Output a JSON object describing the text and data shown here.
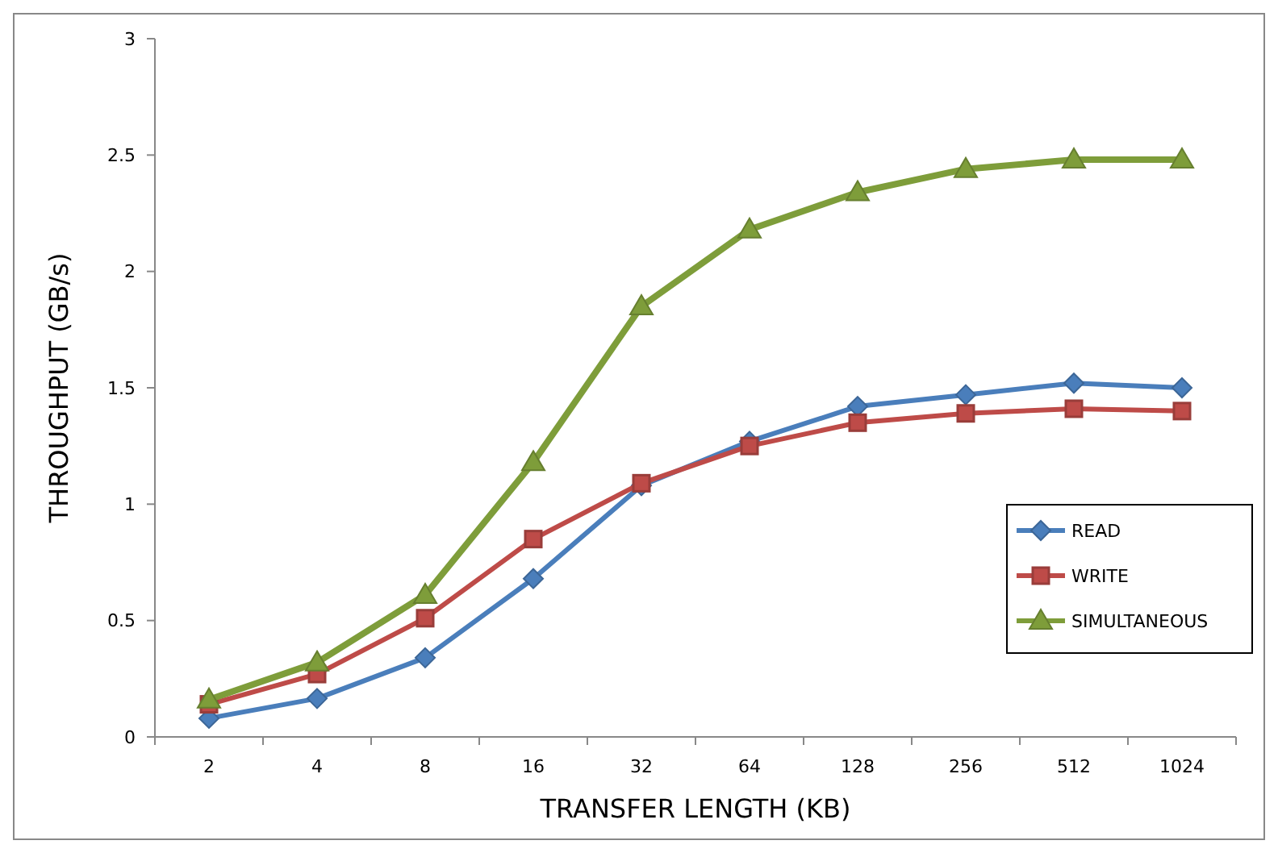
{
  "chart_data": {
    "type": "line",
    "xlabel": "TRANSFER LENGTH (KB)",
    "ylabel": "THROUGHPUT (GB/s)",
    "categories": [
      "2",
      "4",
      "8",
      "16",
      "32",
      "64",
      "128",
      "256",
      "512",
      "1024"
    ],
    "ylim": [
      0,
      3
    ],
    "yticks": [
      0,
      0.5,
      1,
      1.5,
      2,
      2.5,
      3
    ],
    "grid": false,
    "legend": "right",
    "series": [
      {
        "name": "READ",
        "color": "#4a7ebb",
        "marker": "diamond",
        "values": [
          0.08,
          0.165,
          0.34,
          0.68,
          1.08,
          1.27,
          1.42,
          1.47,
          1.52,
          1.5
        ]
      },
      {
        "name": "WRITE",
        "color": "#be4b48",
        "marker": "square",
        "values": [
          0.14,
          0.27,
          0.51,
          0.85,
          1.09,
          1.25,
          1.35,
          1.39,
          1.41,
          1.4
        ]
      },
      {
        "name": "SIMULTANEOUS",
        "color": "#7e9d3a",
        "marker": "triangle",
        "values": [
          0.16,
          0.32,
          0.61,
          1.18,
          1.85,
          2.18,
          2.34,
          2.44,
          2.48,
          2.48
        ]
      }
    ]
  }
}
